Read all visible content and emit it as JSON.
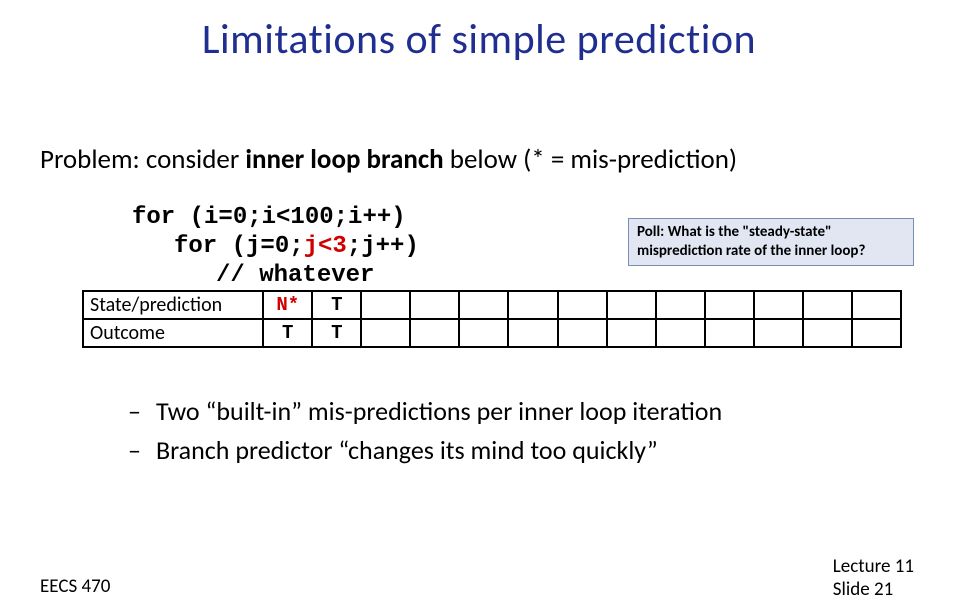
{
  "title": "Limitations of simple prediction",
  "problem_pre": "Problem: consider ",
  "problem_bold": "inner loop branch",
  "problem_post": " below (* = mis-prediction)",
  "code": {
    "l1_pre": "for (i=0;i<100;i++)",
    "l2_pre": "for (j=0;",
    "l2_hl": "j<3",
    "l2_post": ";j++)",
    "l3": "// whatever"
  },
  "poll": "Poll: What is the \"steady-state\" misprediction rate of the inner loop?",
  "table": {
    "row1_label": "State/prediction",
    "row1_c1": "N*",
    "row1_c2": "T",
    "row2_label": "Outcome",
    "row2_c1": "T",
    "row2_c2": "T"
  },
  "bullet1": "Two “built-in” mis-predictions per inner loop iteration",
  "bullet2": "Branch predictor “changes its mind too quickly”",
  "footer_left": "EECS 470",
  "footer_r1": "Lecture 11",
  "footer_r2": "Slide 21",
  "colors": {
    "title": "#1f2e8f",
    "highlight": "#d00000",
    "poll_bg": "#e1e6f2",
    "poll_border": "#7a8db5",
    "border": "#000000",
    "bg": "#ffffff"
  }
}
